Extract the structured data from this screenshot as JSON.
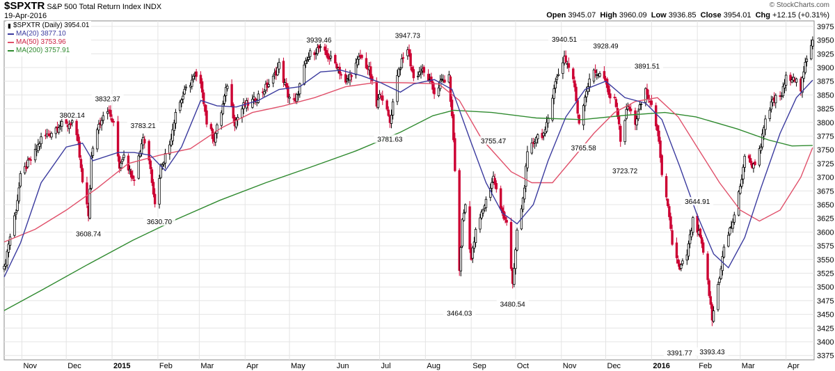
{
  "header": {
    "symbol": "$SPXTR",
    "name": "S&P 500 Total Return Index",
    "exchange": "INDX",
    "date": "19-Apr-2016",
    "copyright": "© StockCharts.com",
    "open_label": "Open",
    "open": "3945.07",
    "high_label": "High",
    "high": "3960.09",
    "low_label": "Low",
    "low": "3936.85",
    "close_label": "Close",
    "close": "3954.01",
    "chg_label": "Chg",
    "chg": "+12.15 (+0.31%)"
  },
  "legend": {
    "price": "$SPXTR (Daily) 3954.01",
    "ma20": "MA(20) 3877.10",
    "ma50": "MA(50) 3753.96",
    "ma200": "MA(200) 3757.91"
  },
  "colors": {
    "up": "#000000",
    "down": "#cc0033",
    "ma20": "#3a3a9e",
    "ma50": "#e0506a",
    "ma200": "#2f8a2f",
    "grid": "#e4e4e4"
  },
  "chart_data": {
    "type": "candlestick",
    "title": "$SPXTR S&P 500 Total Return Index INDX",
    "x_labels": [
      "Nov",
      "Dec",
      "2015",
      "Feb",
      "Mar",
      "Apr",
      "May",
      "Jun",
      "Jul",
      "Aug",
      "Sep",
      "Oct",
      "Nov",
      "Dec",
      "2016",
      "Feb",
      "Mar",
      "Apr"
    ],
    "bold_x_labels": [
      "2015",
      "2016"
    ],
    "y_ticks": [
      3375,
      3400,
      3425,
      3450,
      3475,
      3500,
      3525,
      3550,
      3575,
      3600,
      3625,
      3650,
      3675,
      3700,
      3725,
      3750,
      3775,
      3800,
      3825,
      3850,
      3875,
      3900,
      3925,
      3950,
      3975
    ],
    "ylim": [
      3367,
      3985
    ],
    "annotations": [
      {
        "text": "3802.14",
        "x": "2014-12-05",
        "y": 3802.14
      },
      {
        "text": "3832.37",
        "x": "2014-12-29",
        "y": 3832.37
      },
      {
        "text": "3608.74",
        "x": "2014-12-16",
        "y": 3608.74
      },
      {
        "text": "3783.21",
        "x": "2015-01-22",
        "y": 3783.21
      },
      {
        "text": "3630.70",
        "x": "2015-02-02",
        "y": 3630.7
      },
      {
        "text": "3939.46",
        "x": "2015-05-21",
        "y": 3939.46
      },
      {
        "text": "3947.73",
        "x": "2015-07-20",
        "y": 3947.73
      },
      {
        "text": "3781.63",
        "x": "2015-07-08",
        "y": 3781.63
      },
      {
        "text": "3755.47",
        "x": "2015-09-16",
        "y": 3755.47
      },
      {
        "text": "3464.03",
        "x": "2015-08-24",
        "y": 3464.03
      },
      {
        "text": "3480.54",
        "x": "2015-09-29",
        "y": 3480.54
      },
      {
        "text": "3940.51",
        "x": "2015-11-03",
        "y": 3940.51
      },
      {
        "text": "3928.49",
        "x": "2015-12-01",
        "y": 3928.49
      },
      {
        "text": "3765.58",
        "x": "2015-11-16",
        "y": 3765.58
      },
      {
        "text": "3891.51",
        "x": "2015-12-29",
        "y": 3891.51
      },
      {
        "text": "3723.72",
        "x": "2015-12-14",
        "y": 3723.72
      },
      {
        "text": "3644.91",
        "x": "2016-02-01",
        "y": 3644.91
      },
      {
        "text": "3391.77",
        "x": "2016-01-20",
        "y": 3391.77
      },
      {
        "text": "3393.43",
        "x": "2016-02-11",
        "y": 3393.43
      }
    ],
    "closes": [
      [
        "2014-10-20",
        3532
      ],
      [
        "2014-10-23",
        3580
      ],
      [
        "2014-10-28",
        3640
      ],
      [
        "2014-10-31",
        3700
      ],
      [
        "2014-11-04",
        3720
      ],
      [
        "2014-11-10",
        3745
      ],
      [
        "2014-11-14",
        3770
      ],
      [
        "2014-11-20",
        3780
      ],
      [
        "2014-11-26",
        3795
      ],
      [
        "2014-12-02",
        3795
      ],
      [
        "2014-12-05",
        3802
      ],
      [
        "2014-12-09",
        3760
      ],
      [
        "2014-12-12",
        3690
      ],
      [
        "2014-12-16",
        3630
      ],
      [
        "2014-12-18",
        3735
      ],
      [
        "2014-12-22",
        3790
      ],
      [
        "2014-12-26",
        3815
      ],
      [
        "2014-12-29",
        3825
      ],
      [
        "2015-01-02",
        3795
      ],
      [
        "2015-01-06",
        3720
      ],
      [
        "2015-01-09",
        3745
      ],
      [
        "2015-01-13",
        3710
      ],
      [
        "2015-01-16",
        3700
      ],
      [
        "2015-01-22",
        3775
      ],
      [
        "2015-01-27",
        3720
      ],
      [
        "2015-01-30",
        3650
      ],
      [
        "2015-02-03",
        3720
      ],
      [
        "2015-02-09",
        3760
      ],
      [
        "2015-02-13",
        3820
      ],
      [
        "2015-02-20",
        3860
      ],
      [
        "2015-02-26",
        3885
      ],
      [
        "2015-03-03",
        3860
      ],
      [
        "2015-03-06",
        3800
      ],
      [
        "2015-03-11",
        3770
      ],
      [
        "2015-03-16",
        3820
      ],
      [
        "2015-03-20",
        3870
      ],
      [
        "2015-03-25",
        3800
      ],
      [
        "2015-03-31",
        3830
      ],
      [
        "2015-04-07",
        3840
      ],
      [
        "2015-04-14",
        3860
      ],
      [
        "2015-04-20",
        3880
      ],
      [
        "2015-04-24",
        3905
      ],
      [
        "2015-04-30",
        3850
      ],
      [
        "2015-05-05",
        3835
      ],
      [
        "2015-05-11",
        3900
      ],
      [
        "2015-05-15",
        3925
      ],
      [
        "2015-05-21",
        3935
      ],
      [
        "2015-05-27",
        3920
      ],
      [
        "2015-06-02",
        3905
      ],
      [
        "2015-06-08",
        3870
      ],
      [
        "2015-06-12",
        3890
      ],
      [
        "2015-06-18",
        3920
      ],
      [
        "2015-06-24",
        3895
      ],
      [
        "2015-06-29",
        3830
      ],
      [
        "2015-07-02",
        3855
      ],
      [
        "2015-07-08",
        3800
      ],
      [
        "2015-07-13",
        3890
      ],
      [
        "2015-07-20",
        3935
      ],
      [
        "2015-07-24",
        3880
      ],
      [
        "2015-07-29",
        3895
      ],
      [
        "2015-08-03",
        3880
      ],
      [
        "2015-08-07",
        3855
      ],
      [
        "2015-08-12",
        3875
      ],
      [
        "2015-08-17",
        3880
      ],
      [
        "2015-08-20",
        3770
      ],
      [
        "2015-08-24",
        3530
      ],
      [
        "2015-08-26",
        3620
      ],
      [
        "2015-08-28",
        3650
      ],
      [
        "2015-09-01",
        3550
      ],
      [
        "2015-09-04",
        3600
      ],
      [
        "2015-09-10",
        3650
      ],
      [
        "2015-09-16",
        3700
      ],
      [
        "2015-09-21",
        3640
      ],
      [
        "2015-09-25",
        3620
      ],
      [
        "2015-09-29",
        3500
      ],
      [
        "2015-10-02",
        3600
      ],
      [
        "2015-10-06",
        3660
      ],
      [
        "2015-10-09",
        3740
      ],
      [
        "2015-10-15",
        3775
      ],
      [
        "2015-10-21",
        3780
      ],
      [
        "2015-10-27",
        3865
      ],
      [
        "2015-11-03",
        3920
      ],
      [
        "2015-11-09",
        3880
      ],
      [
        "2015-11-13",
        3800
      ],
      [
        "2015-11-18",
        3860
      ],
      [
        "2015-11-23",
        3895
      ],
      [
        "2015-11-30",
        3880
      ],
      [
        "2015-12-03",
        3850
      ],
      [
        "2015-12-08",
        3835
      ],
      [
        "2015-12-11",
        3770
      ],
      [
        "2015-12-16",
        3830
      ],
      [
        "2015-12-21",
        3800
      ],
      [
        "2015-12-28",
        3860
      ],
      [
        "2015-12-31",
        3835
      ],
      [
        "2016-01-05",
        3790
      ],
      [
        "2016-01-08",
        3700
      ],
      [
        "2016-01-13",
        3630
      ],
      [
        "2016-01-15",
        3580
      ],
      [
        "2016-01-20",
        3530
      ],
      [
        "2016-01-25",
        3560
      ],
      [
        "2016-01-29",
        3620
      ],
      [
        "2016-02-03",
        3590
      ],
      [
        "2016-02-08",
        3510
      ],
      [
        "2016-02-11",
        3440
      ],
      [
        "2016-02-16",
        3520
      ],
      [
        "2016-02-19",
        3570
      ],
      [
        "2016-02-25",
        3620
      ],
      [
        "2016-03-01",
        3680
      ],
      [
        "2016-03-04",
        3740
      ],
      [
        "2016-03-10",
        3720
      ],
      [
        "2016-03-15",
        3760
      ],
      [
        "2016-03-18",
        3800
      ],
      [
        "2016-03-23",
        3840
      ],
      [
        "2016-03-29",
        3850
      ],
      [
        "2016-04-01",
        3880
      ],
      [
        "2016-04-06",
        3885
      ],
      [
        "2016-04-11",
        3860
      ],
      [
        "2016-04-14",
        3905
      ],
      [
        "2016-04-19",
        3954
      ]
    ],
    "ma20": [
      [
        "2014-10-20",
        3518
      ],
      [
        "2014-10-31",
        3580
      ],
      [
        "2014-11-14",
        3690
      ],
      [
        "2014-12-01",
        3755
      ],
      [
        "2014-12-12",
        3762
      ],
      [
        "2014-12-19",
        3730
      ],
      [
        "2015-01-05",
        3745
      ],
      [
        "2015-01-16",
        3745
      ],
      [
        "2015-01-27",
        3740
      ],
      [
        "2015-02-06",
        3712
      ],
      [
        "2015-02-17",
        3755
      ],
      [
        "2015-03-02",
        3840
      ],
      [
        "2015-03-13",
        3830
      ],
      [
        "2015-03-26",
        3828
      ],
      [
        "2015-04-10",
        3840
      ],
      [
        "2015-04-24",
        3860
      ],
      [
        "2015-05-08",
        3865
      ],
      [
        "2015-05-22",
        3892
      ],
      [
        "2015-06-05",
        3895
      ],
      [
        "2015-06-19",
        3885
      ],
      [
        "2015-07-02",
        3872
      ],
      [
        "2015-07-15",
        3855
      ],
      [
        "2015-07-24",
        3870
      ],
      [
        "2015-08-07",
        3878
      ],
      [
        "2015-08-19",
        3860
      ],
      [
        "2015-08-31",
        3770
      ],
      [
        "2015-09-11",
        3690
      ],
      [
        "2015-09-22",
        3635
      ],
      [
        "2015-10-02",
        3615
      ],
      [
        "2015-10-13",
        3650
      ],
      [
        "2015-10-23",
        3730
      ],
      [
        "2015-11-04",
        3810
      ],
      [
        "2015-11-17",
        3860
      ],
      [
        "2015-12-01",
        3875
      ],
      [
        "2015-12-14",
        3845
      ],
      [
        "2015-12-28",
        3835
      ],
      [
        "2016-01-08",
        3805
      ],
      [
        "2016-01-20",
        3720
      ],
      [
        "2016-02-01",
        3630
      ],
      [
        "2016-02-12",
        3560
      ],
      [
        "2016-02-22",
        3535
      ],
      [
        "2016-03-04",
        3590
      ],
      [
        "2016-03-15",
        3680
      ],
      [
        "2016-03-28",
        3780
      ],
      [
        "2016-04-08",
        3845
      ],
      [
        "2016-04-19",
        3877
      ]
    ],
    "ma50": [
      [
        "2014-10-20",
        3582
      ],
      [
        "2014-11-10",
        3605
      ],
      [
        "2014-12-01",
        3640
      ],
      [
        "2014-12-22",
        3680
      ],
      [
        "2015-01-12",
        3725
      ],
      [
        "2015-02-02",
        3740
      ],
      [
        "2015-02-23",
        3752
      ],
      [
        "2015-03-16",
        3790
      ],
      [
        "2015-04-06",
        3818
      ],
      [
        "2015-04-27",
        3830
      ],
      [
        "2015-05-18",
        3845
      ],
      [
        "2015-06-08",
        3865
      ],
      [
        "2015-06-29",
        3873
      ],
      [
        "2015-07-20",
        3872
      ],
      [
        "2015-08-10",
        3870
      ],
      [
        "2015-08-24",
        3840
      ],
      [
        "2015-09-08",
        3770
      ],
      [
        "2015-09-28",
        3710
      ],
      [
        "2015-10-12",
        3690
      ],
      [
        "2015-10-26",
        3690
      ],
      [
        "2015-11-09",
        3735
      ],
      [
        "2015-11-23",
        3780
      ],
      [
        "2015-12-07",
        3818
      ],
      [
        "2015-12-21",
        3838
      ],
      [
        "2016-01-05",
        3845
      ],
      [
        "2016-01-19",
        3810
      ],
      [
        "2016-02-02",
        3750
      ],
      [
        "2016-02-16",
        3690
      ],
      [
        "2016-03-01",
        3640
      ],
      [
        "2016-03-14",
        3620
      ],
      [
        "2016-03-28",
        3640
      ],
      [
        "2016-04-11",
        3700
      ],
      [
        "2016-04-19",
        3754
      ]
    ],
    "ma200": [
      [
        "2014-10-20",
        3457
      ],
      [
        "2014-11-15",
        3495
      ],
      [
        "2014-12-15",
        3540
      ],
      [
        "2015-01-15",
        3585
      ],
      [
        "2015-02-15",
        3625
      ],
      [
        "2015-03-15",
        3658
      ],
      [
        "2015-04-15",
        3690
      ],
      [
        "2015-05-15",
        3718
      ],
      [
        "2015-06-15",
        3748
      ],
      [
        "2015-07-15",
        3782
      ],
      [
        "2015-08-06",
        3812
      ],
      [
        "2015-08-20",
        3822
      ],
      [
        "2015-09-15",
        3818
      ],
      [
        "2015-10-15",
        3808
      ],
      [
        "2015-11-15",
        3805
      ],
      [
        "2015-12-15",
        3813
      ],
      [
        "2016-01-10",
        3818
      ],
      [
        "2016-01-31",
        3810
      ],
      [
        "2016-02-28",
        3788
      ],
      [
        "2016-03-20",
        3768
      ],
      [
        "2016-04-05",
        3757
      ],
      [
        "2016-04-19",
        3758
      ]
    ]
  }
}
